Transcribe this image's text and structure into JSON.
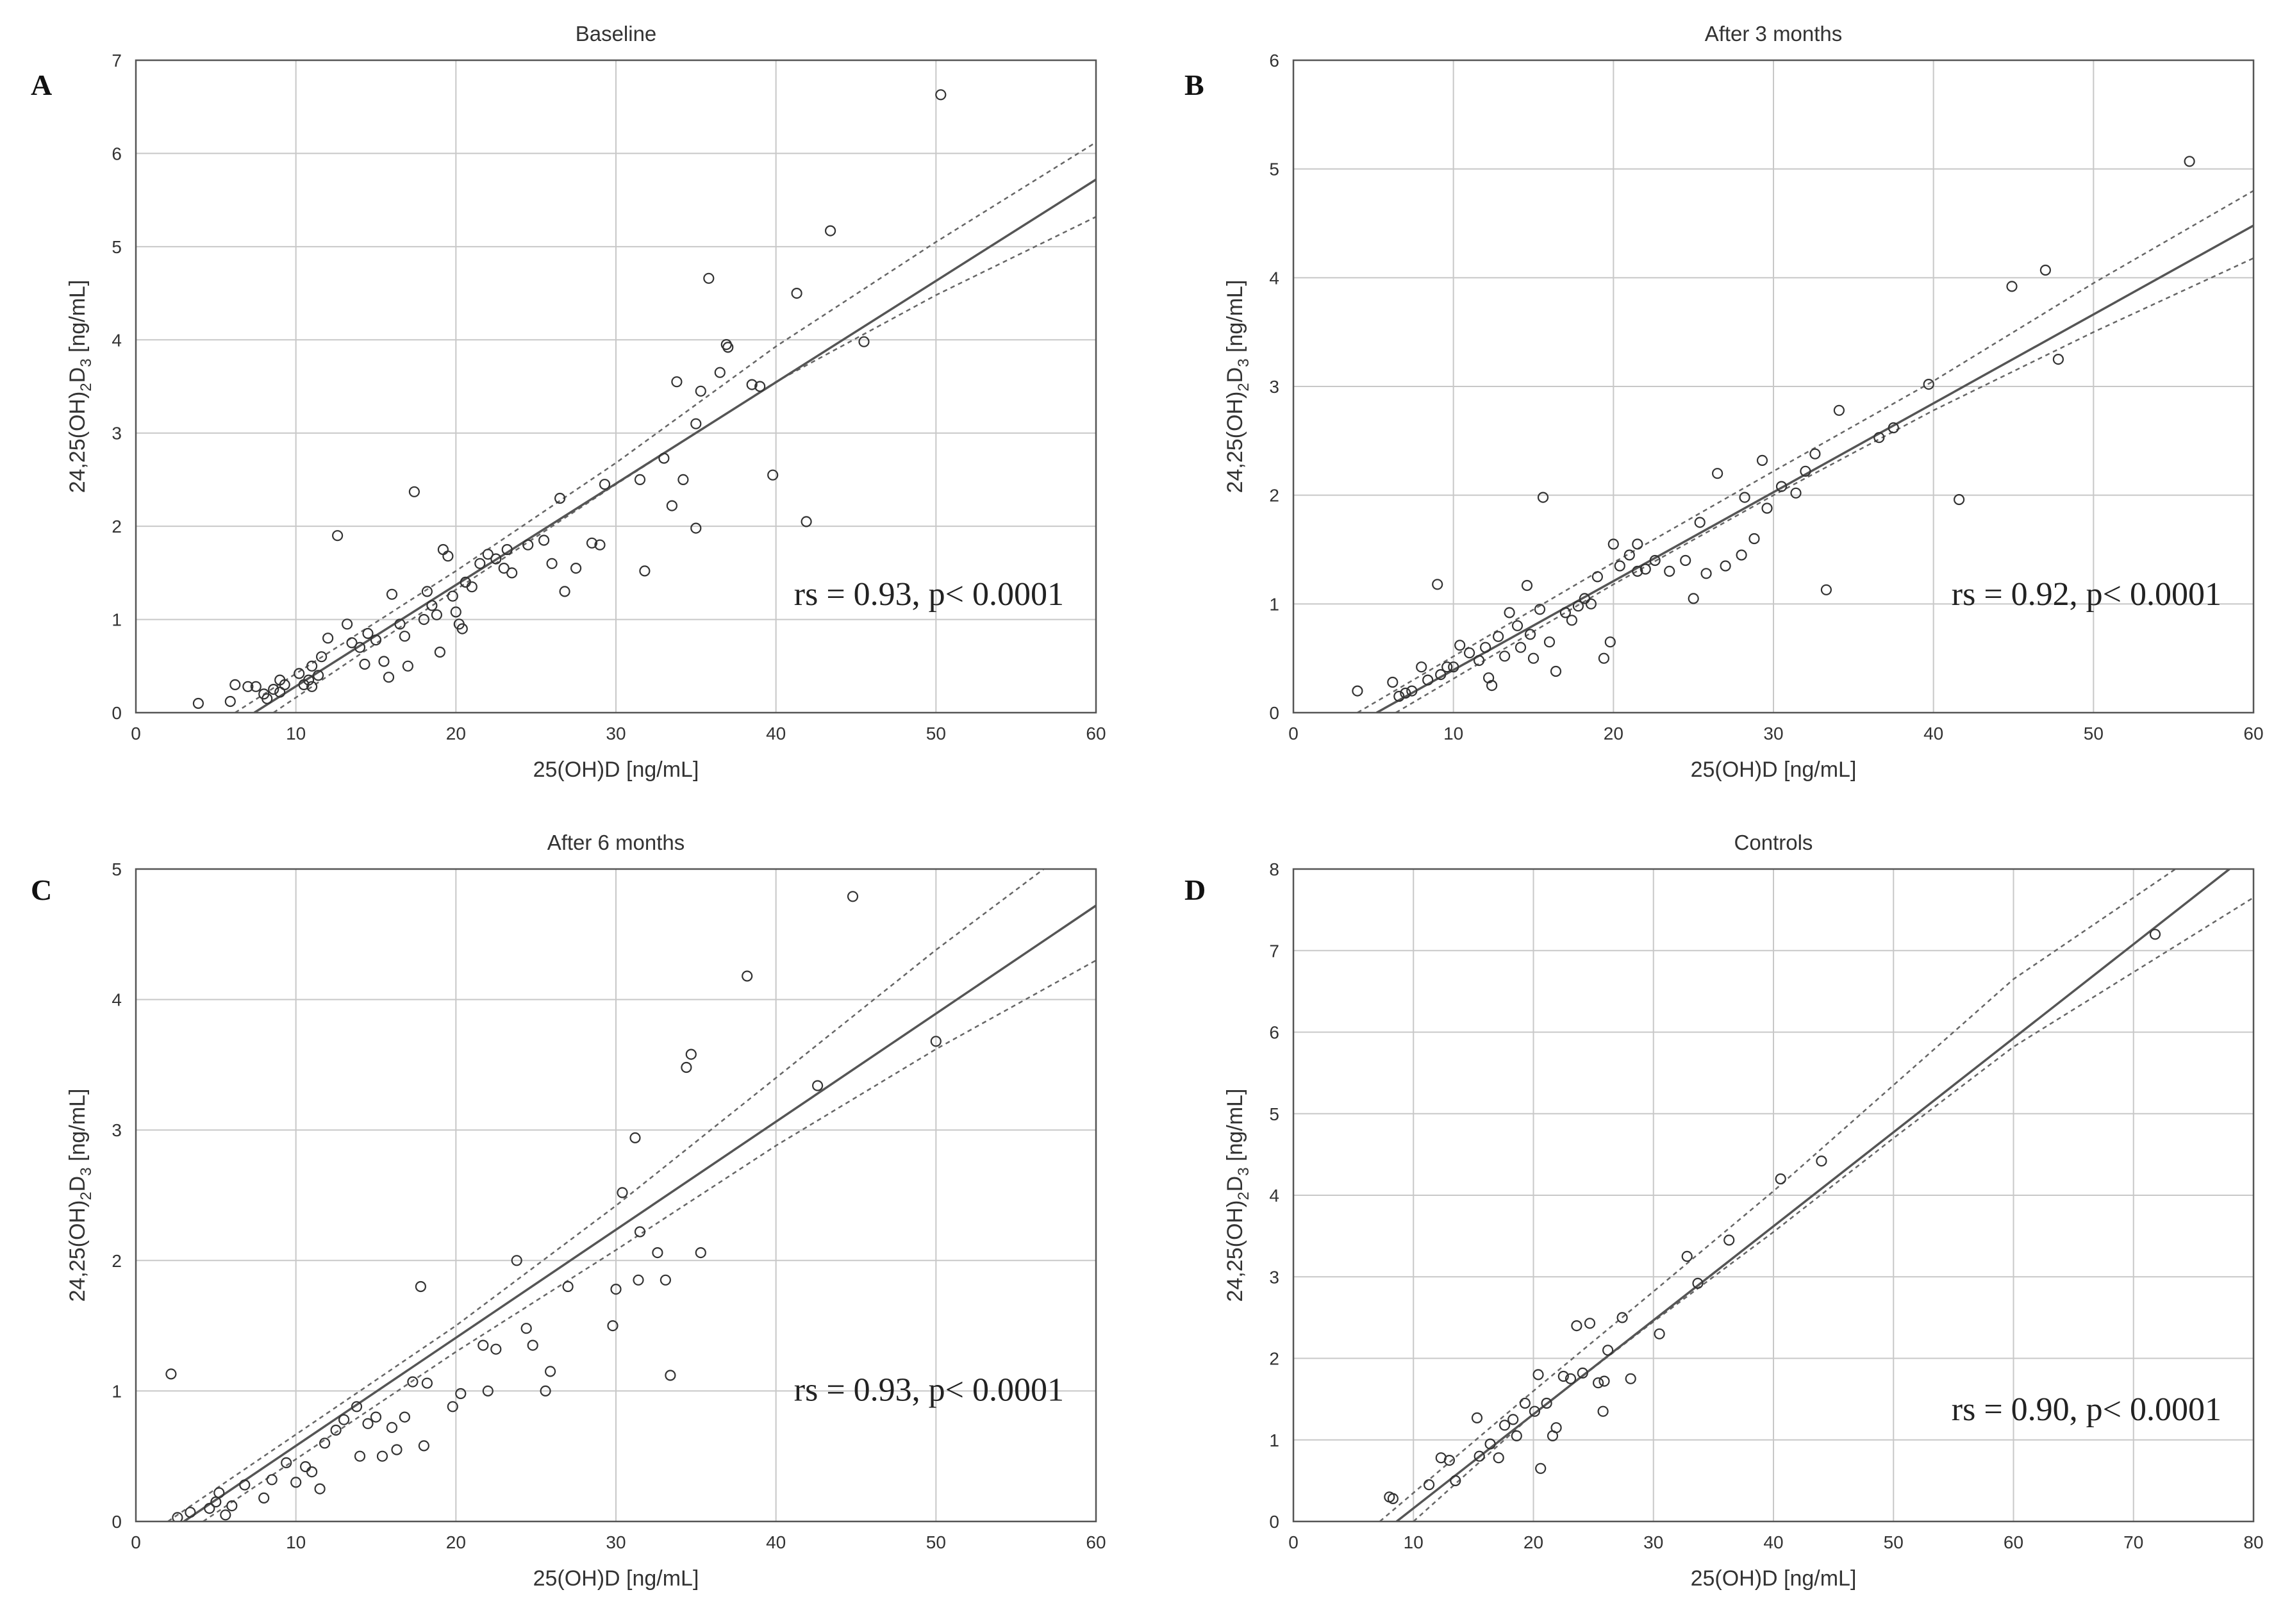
{
  "chart_data": [
    {
      "panel": "A",
      "type": "scatter",
      "title": "Baseline",
      "xlabel": "25(OH)D [ng/mL]",
      "ylabel_main": "24,25(OH)",
      "ylabel_sub1": "2",
      "ylabel_mid": "D",
      "ylabel_sub2": "3",
      "ylabel_unit": " [ng/mL]",
      "annotation": "rs = 0.93,  p< 0.0001",
      "xlim": [
        0,
        60
      ],
      "ylim": [
        0,
        7
      ],
      "xticks": [
        0,
        10,
        20,
        30,
        40,
        50,
        60
      ],
      "yticks": [
        0,
        1,
        2,
        3,
        4,
        5,
        6,
        7
      ],
      "fit": {
        "x": [
          7.4,
          60
        ],
        "y": [
          0,
          5.72
        ]
      },
      "ci_upper": [
        [
          6.2,
          0
        ],
        [
          20,
          1.52
        ],
        [
          30,
          2.68
        ],
        [
          40,
          3.93
        ],
        [
          50,
          5.05
        ],
        [
          60,
          6.12
        ]
      ],
      "ci_lower": [
        [
          8.6,
          0
        ],
        [
          20,
          1.32
        ],
        [
          30,
          2.45
        ],
        [
          40,
          3.55
        ],
        [
          50,
          4.48
        ],
        [
          60,
          5.32
        ]
      ],
      "points": [
        [
          3.9,
          0.1
        ],
        [
          5.9,
          0.12
        ],
        [
          6.2,
          0.3
        ],
        [
          7.0,
          0.28
        ],
        [
          7.5,
          0.28
        ],
        [
          8.0,
          0.2
        ],
        [
          8.2,
          0.15
        ],
        [
          8.6,
          0.25
        ],
        [
          9.0,
          0.35
        ],
        [
          9.3,
          0.3
        ],
        [
          9.0,
          0.22
        ],
        [
          10.2,
          0.42
        ],
        [
          10.5,
          0.3
        ],
        [
          10.8,
          0.35
        ],
        [
          11.0,
          0.5
        ],
        [
          11.0,
          0.28
        ],
        [
          11.4,
          0.4
        ],
        [
          11.6,
          0.6
        ],
        [
          12.0,
          0.8
        ],
        [
          12.6,
          1.9
        ],
        [
          13.2,
          0.95
        ],
        [
          13.5,
          0.75
        ],
        [
          14.0,
          0.7
        ],
        [
          14.3,
          0.52
        ],
        [
          14.5,
          0.85
        ],
        [
          15.0,
          0.78
        ],
        [
          15.5,
          0.55
        ],
        [
          15.8,
          0.38
        ],
        [
          16.0,
          1.27
        ],
        [
          16.5,
          0.95
        ],
        [
          16.8,
          0.82
        ],
        [
          17.0,
          0.5
        ],
        [
          17.4,
          2.37
        ],
        [
          18.0,
          1.0
        ],
        [
          18.2,
          1.3
        ],
        [
          18.5,
          1.15
        ],
        [
          18.8,
          1.05
        ],
        [
          19.0,
          0.65
        ],
        [
          19.2,
          1.75
        ],
        [
          19.5,
          1.68
        ],
        [
          19.8,
          1.25
        ],
        [
          20.0,
          1.08
        ],
        [
          20.2,
          0.95
        ],
        [
          20.4,
          0.9
        ],
        [
          20.6,
          1.4
        ],
        [
          21.0,
          1.35
        ],
        [
          21.5,
          1.6
        ],
        [
          22.0,
          1.7
        ],
        [
          22.5,
          1.65
        ],
        [
          23.0,
          1.55
        ],
        [
          23.2,
          1.75
        ],
        [
          23.5,
          1.5
        ],
        [
          24.5,
          1.8
        ],
        [
          25.5,
          1.85
        ],
        [
          26.0,
          1.6
        ],
        [
          26.5,
          2.3
        ],
        [
          26.8,
          1.3
        ],
        [
          27.5,
          1.55
        ],
        [
          28.5,
          1.82
        ],
        [
          29.0,
          1.8
        ],
        [
          29.3,
          2.45
        ],
        [
          31.5,
          2.5
        ],
        [
          31.8,
          1.52
        ],
        [
          33.0,
          2.73
        ],
        [
          33.5,
          2.22
        ],
        [
          33.8,
          3.55
        ],
        [
          34.2,
          2.5
        ],
        [
          35.0,
          1.98
        ],
        [
          35.3,
          3.45
        ],
        [
          35.0,
          3.1
        ],
        [
          35.8,
          4.66
        ],
        [
          36.5,
          3.65
        ],
        [
          36.9,
          3.95
        ],
        [
          37.0,
          3.92
        ],
        [
          38.5,
          3.52
        ],
        [
          39.0,
          3.5
        ],
        [
          39.8,
          2.55
        ],
        [
          41.3,
          4.5
        ],
        [
          41.9,
          2.05
        ],
        [
          43.4,
          5.17
        ],
        [
          45.5,
          3.98
        ],
        [
          50.3,
          6.63
        ]
      ]
    },
    {
      "panel": "B",
      "type": "scatter",
      "title": "After 3 months",
      "xlabel": "25(OH)D [ng/mL]",
      "ylabel_main": "24,25(OH)",
      "ylabel_sub1": "2",
      "ylabel_mid": "D",
      "ylabel_sub2": "3",
      "ylabel_unit": " [ng/mL]",
      "annotation": "rs = 0.92,  p< 0.0001",
      "xlim": [
        0,
        60
      ],
      "ylim": [
        0,
        6
      ],
      "xticks": [
        0,
        10,
        20,
        30,
        40,
        50,
        60
      ],
      "yticks": [
        0,
        1,
        2,
        3,
        4,
        5,
        6
      ],
      "fit": {
        "x": [
          5.2,
          60
        ],
        "y": [
          0,
          4.48
        ]
      },
      "ci_upper": [
        [
          4.0,
          0
        ],
        [
          20,
          1.38
        ],
        [
          30,
          2.22
        ],
        [
          40,
          3.05
        ],
        [
          50,
          3.95
        ],
        [
          60,
          4.8
        ]
      ],
      "ci_lower": [
        [
          6.4,
          0
        ],
        [
          20,
          1.18
        ],
        [
          30,
          2.0
        ],
        [
          40,
          2.78
        ],
        [
          50,
          3.5
        ],
        [
          60,
          4.18
        ]
      ],
      "points": [
        [
          4.0,
          0.2
        ],
        [
          6.2,
          0.28
        ],
        [
          6.6,
          0.15
        ],
        [
          7.0,
          0.18
        ],
        [
          7.4,
          0.2
        ],
        [
          8.0,
          0.42
        ],
        [
          8.4,
          0.3
        ],
        [
          9.0,
          1.18
        ],
        [
          9.2,
          0.35
        ],
        [
          9.6,
          0.42
        ],
        [
          10.0,
          0.42
        ],
        [
          10.4,
          0.62
        ],
        [
          11.0,
          0.55
        ],
        [
          11.6,
          0.48
        ],
        [
          12.0,
          0.6
        ],
        [
          12.2,
          0.32
        ],
        [
          12.4,
          0.25
        ],
        [
          12.8,
          0.7
        ],
        [
          13.2,
          0.52
        ],
        [
          13.5,
          0.92
        ],
        [
          14.0,
          0.8
        ],
        [
          14.2,
          0.6
        ],
        [
          14.6,
          1.17
        ],
        [
          14.8,
          0.72
        ],
        [
          15.0,
          0.5
        ],
        [
          15.4,
          0.95
        ],
        [
          15.6,
          1.98
        ],
        [
          16.0,
          0.65
        ],
        [
          16.4,
          0.38
        ],
        [
          17.0,
          0.92
        ],
        [
          17.4,
          0.85
        ],
        [
          17.8,
          0.98
        ],
        [
          18.2,
          1.05
        ],
        [
          18.6,
          1.0
        ],
        [
          19.0,
          1.25
        ],
        [
          19.4,
          0.5
        ],
        [
          19.8,
          0.65
        ],
        [
          20.0,
          1.55
        ],
        [
          20.4,
          1.35
        ],
        [
          21.0,
          1.45
        ],
        [
          21.5,
          1.3
        ],
        [
          21.5,
          1.55
        ],
        [
          22.0,
          1.32
        ],
        [
          22.6,
          1.4
        ],
        [
          23.5,
          1.3
        ],
        [
          24.5,
          1.4
        ],
        [
          25.0,
          1.05
        ],
        [
          25.4,
          1.75
        ],
        [
          25.8,
          1.28
        ],
        [
          26.5,
          2.2
        ],
        [
          27.0,
          1.35
        ],
        [
          28.0,
          1.45
        ],
        [
          28.2,
          1.98
        ],
        [
          28.8,
          1.6
        ],
        [
          29.3,
          2.32
        ],
        [
          29.6,
          1.88
        ],
        [
          30.5,
          2.08
        ],
        [
          31.4,
          2.02
        ],
        [
          32.0,
          2.22
        ],
        [
          32.6,
          2.38
        ],
        [
          33.3,
          1.13
        ],
        [
          34.1,
          2.78
        ],
        [
          36.6,
          2.53
        ],
        [
          37.5,
          2.62
        ],
        [
          39.7,
          3.02
        ],
        [
          41.6,
          1.96
        ],
        [
          44.9,
          3.92
        ],
        [
          47.0,
          4.07
        ],
        [
          47.8,
          3.25
        ],
        [
          56.0,
          5.07
        ]
      ]
    },
    {
      "panel": "C",
      "type": "scatter",
      "title": "After 6 months",
      "xlabel": "25(OH)D [ng/mL]",
      "ylabel_main": "24,25(OH)",
      "ylabel_sub1": "2",
      "ylabel_mid": "D",
      "ylabel_sub2": "3",
      "ylabel_unit": " [ng/mL]",
      "annotation": "rs = 0.93,  p< 0.0001",
      "xlim": [
        0,
        60
      ],
      "ylim": [
        0,
        5
      ],
      "xticks": [
        0,
        10,
        20,
        30,
        40,
        50,
        60
      ],
      "yticks": [
        0,
        1,
        2,
        3,
        4,
        5
      ],
      "fit": {
        "x": [
          3.0,
          60
        ],
        "y": [
          0,
          4.72
        ]
      },
      "ci_upper": [
        [
          2.0,
          0
        ],
        [
          20,
          1.5
        ],
        [
          30,
          2.42
        ],
        [
          40,
          3.4
        ],
        [
          50,
          4.38
        ],
        [
          60,
          5.3
        ]
      ],
      "ci_lower": [
        [
          4.2,
          0
        ],
        [
          20,
          1.3
        ],
        [
          30,
          2.08
        ],
        [
          40,
          2.88
        ],
        [
          50,
          3.62
        ],
        [
          60,
          4.3
        ]
      ],
      "points": [
        [
          2.2,
          1.13
        ],
        [
          2.6,
          0.03
        ],
        [
          3.4,
          0.07
        ],
        [
          4.6,
          0.1
        ],
        [
          5.0,
          0.15
        ],
        [
          5.2,
          0.22
        ],
        [
          5.6,
          0.05
        ],
        [
          6.0,
          0.12
        ],
        [
          6.8,
          0.28
        ],
        [
          8.0,
          0.18
        ],
        [
          8.5,
          0.32
        ],
        [
          9.4,
          0.45
        ],
        [
          10.0,
          0.3
        ],
        [
          10.6,
          0.42
        ],
        [
          11.0,
          0.38
        ],
        [
          11.5,
          0.25
        ],
        [
          11.8,
          0.6
        ],
        [
          12.5,
          0.7
        ],
        [
          13.0,
          0.78
        ],
        [
          13.8,
          0.88
        ],
        [
          14.0,
          0.5
        ],
        [
          14.5,
          0.75
        ],
        [
          15.0,
          0.8
        ],
        [
          15.4,
          0.5
        ],
        [
          16.0,
          0.72
        ],
        [
          16.3,
          0.55
        ],
        [
          16.8,
          0.8
        ],
        [
          17.3,
          1.07
        ],
        [
          17.8,
          1.8
        ],
        [
          18.0,
          0.58
        ],
        [
          18.2,
          1.06
        ],
        [
          19.8,
          0.88
        ],
        [
          20.3,
          0.98
        ],
        [
          21.7,
          1.35
        ],
        [
          22.0,
          1.0
        ],
        [
          22.5,
          1.32
        ],
        [
          23.8,
          2.0
        ],
        [
          24.4,
          1.48
        ],
        [
          24.8,
          1.35
        ],
        [
          25.6,
          1.0
        ],
        [
          25.9,
          1.15
        ],
        [
          27.0,
          1.8
        ],
        [
          29.8,
          1.5
        ],
        [
          30.0,
          1.78
        ],
        [
          30.4,
          2.52
        ],
        [
          31.2,
          2.94
        ],
        [
          31.4,
          1.85
        ],
        [
          31.5,
          2.22
        ],
        [
          32.6,
          2.06
        ],
        [
          33.1,
          1.85
        ],
        [
          33.4,
          1.12
        ],
        [
          34.4,
          3.48
        ],
        [
          34.7,
          3.58
        ],
        [
          35.3,
          2.06
        ],
        [
          38.2,
          4.18
        ],
        [
          42.6,
          3.34
        ],
        [
          44.8,
          4.79
        ],
        [
          50.0,
          3.68
        ]
      ]
    },
    {
      "panel": "D",
      "type": "scatter",
      "title": "Controls",
      "xlabel": "25(OH)D [ng/mL]",
      "ylabel_main": "24,25(OH)",
      "ylabel_sub1": "2",
      "ylabel_mid": "D",
      "ylabel_sub2": "3",
      "ylabel_unit": " [ng/mL]",
      "annotation": "rs = 0.90,  p< 0.0001",
      "xlim": [
        0,
        80
      ],
      "ylim": [
        0,
        8
      ],
      "xticks": [
        0,
        10,
        20,
        30,
        40,
        50,
        60,
        70,
        80
      ],
      "yticks": [
        0,
        1,
        2,
        3,
        4,
        5,
        6,
        7,
        8
      ],
      "fit": {
        "x": [
          8.6,
          78.0
        ],
        "y": [
          0,
          8.0
        ]
      },
      "ci_upper": [
        [
          7.2,
          0
        ],
        [
          20,
          1.6
        ],
        [
          30,
          2.82
        ],
        [
          40,
          4.05
        ],
        [
          50,
          5.35
        ],
        [
          60,
          6.65
        ],
        [
          73.5,
          8.0
        ]
      ],
      "ci_lower": [
        [
          10.0,
          0
        ],
        [
          20,
          1.32
        ],
        [
          30,
          2.45
        ],
        [
          40,
          3.55
        ],
        [
          50,
          4.7
        ],
        [
          60,
          5.82
        ],
        [
          80,
          7.65
        ]
      ],
      "points": [
        [
          8.0,
          0.3
        ],
        [
          8.3,
          0.28
        ],
        [
          11.3,
          0.45
        ],
        [
          12.3,
          0.78
        ],
        [
          13.0,
          0.75
        ],
        [
          13.5,
          0.5
        ],
        [
          15.3,
          1.27
        ],
        [
          15.5,
          0.8
        ],
        [
          16.4,
          0.95
        ],
        [
          17.1,
          0.78
        ],
        [
          17.6,
          1.18
        ],
        [
          18.3,
          1.25
        ],
        [
          18.6,
          1.05
        ],
        [
          19.3,
          1.45
        ],
        [
          20.1,
          1.35
        ],
        [
          20.4,
          1.8
        ],
        [
          20.6,
          0.65
        ],
        [
          21.1,
          1.45
        ],
        [
          21.6,
          1.05
        ],
        [
          21.9,
          1.15
        ],
        [
          22.5,
          1.78
        ],
        [
          23.1,
          1.75
        ],
        [
          23.6,
          2.4
        ],
        [
          24.1,
          1.82
        ],
        [
          24.7,
          2.43
        ],
        [
          25.4,
          1.7
        ],
        [
          25.8,
          1.35
        ],
        [
          25.9,
          1.72
        ],
        [
          26.2,
          2.1
        ],
        [
          27.4,
          2.5
        ],
        [
          28.1,
          1.75
        ],
        [
          30.5,
          2.3
        ],
        [
          32.8,
          3.25
        ],
        [
          33.7,
          2.92
        ],
        [
          36.3,
          3.45
        ],
        [
          40.6,
          4.2
        ],
        [
          44.0,
          4.42
        ],
        [
          71.8,
          7.2
        ]
      ]
    }
  ]
}
